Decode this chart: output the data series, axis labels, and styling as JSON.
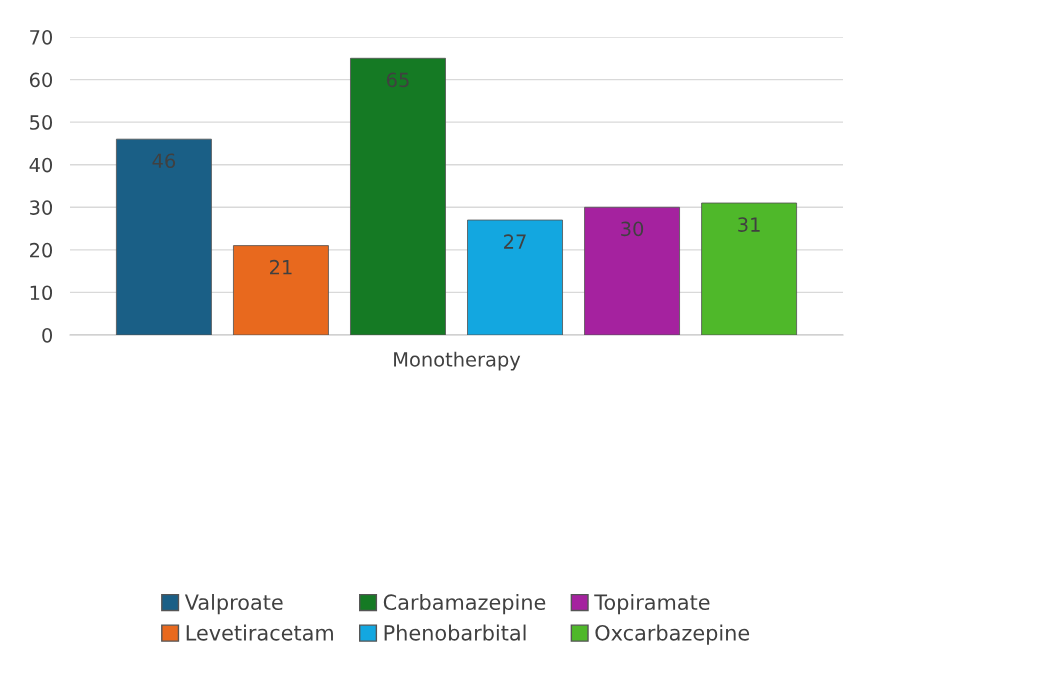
{
  "chart_data": {
    "type": "bar",
    "categories": [
      "Monotherapy"
    ],
    "series": [
      {
        "name": "Valproate",
        "color": "#1a5f86",
        "values": [
          46
        ]
      },
      {
        "name": "Levetiracetam",
        "color": "#e8691e",
        "values": [
          21
        ]
      },
      {
        "name": "Carbamazepine",
        "color": "#157a24",
        "values": [
          65
        ]
      },
      {
        "name": "Phenobarbital",
        "color": "#13a7e0",
        "values": [
          27
        ]
      },
      {
        "name": "Topiramate",
        "color": "#a5229f",
        "values": [
          30
        ]
      },
      {
        "name": "Oxcarbazepine",
        "color": "#4fb82a",
        "values": [
          31
        ]
      }
    ],
    "ylim": [
      0,
      70
    ],
    "yticks": [
      0,
      10,
      20,
      30,
      40,
      50,
      60,
      70
    ],
    "grid": "y",
    "legend": "bottom",
    "data_labels": true
  }
}
